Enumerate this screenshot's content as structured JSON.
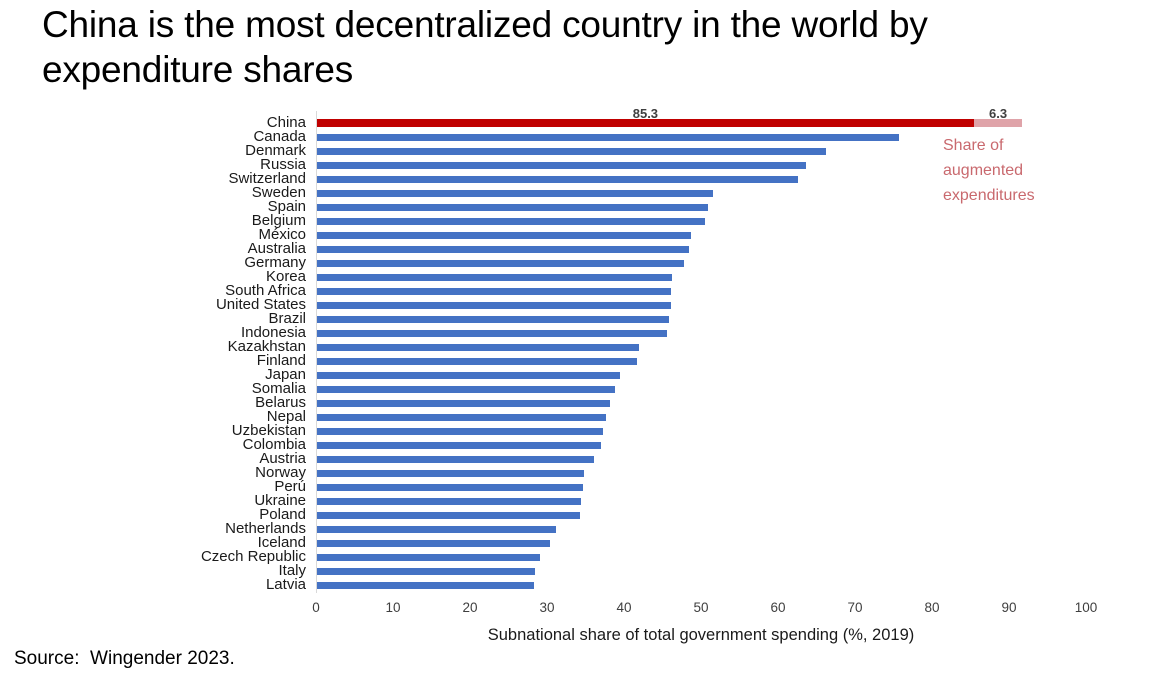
{
  "title": "China is the most decentralized country in the world by\nexpenditure shares",
  "source": "Source:  Wingender 2023.",
  "legend": {
    "augmented_label": "Share of\naugmented\nexpenditures"
  },
  "chart_data": {
    "type": "bar",
    "orientation": "horizontal",
    "title": "China is the most decentralized country in the world by expenditure shares",
    "xlabel": "Subnational share of total government spending (%, 2019)",
    "ylabel": "",
    "xlim": [
      0,
      100
    ],
    "xticks": [
      0,
      10,
      20,
      30,
      40,
      50,
      60,
      70,
      80,
      90,
      100
    ],
    "grid": false,
    "legend_position": "right-of-china-bar",
    "categories": [
      "China",
      "Canada",
      "Denmark",
      "Russia",
      "Switzerland",
      "Sweden",
      "Spain",
      "Belgium",
      "México",
      "Australia",
      "Germany",
      "Korea",
      "South Africa",
      "United States",
      "Brazil",
      "Indonesia",
      "Kazakhstan",
      "Finland",
      "Japan",
      "Somalia",
      "Belarus",
      "Nepal",
      "Uzbekistan",
      "Colombia",
      "Austria",
      "Norway",
      "Perú",
      "Ukraine",
      "Poland",
      "Netherlands",
      "Iceland",
      "Czech Republic",
      "Italy",
      "Latvia"
    ],
    "values": [
      85.3,
      75.6,
      66.1,
      63.5,
      62.5,
      51.4,
      50.8,
      50.4,
      48.6,
      48.3,
      47.6,
      46.1,
      46.0,
      46.0,
      45.7,
      45.5,
      41.8,
      41.6,
      39.4,
      38.7,
      38.1,
      37.5,
      37.2,
      36.9,
      36.0,
      34.7,
      34.6,
      34.3,
      34.2,
      31.0,
      30.3,
      28.9,
      28.3,
      28.2
    ],
    "china_augmented_value": 6.3,
    "data_labels": {
      "china_base": "85.3",
      "china_augmented": "6.3"
    },
    "colors": {
      "bar_blue": "#4472c4",
      "bar_red": "#c00000",
      "bar_pink": "#dfa3a9",
      "legend_text": "#c9696e",
      "axis_line": "#d9d9d9",
      "tick_label": "#3f3f3f"
    }
  }
}
